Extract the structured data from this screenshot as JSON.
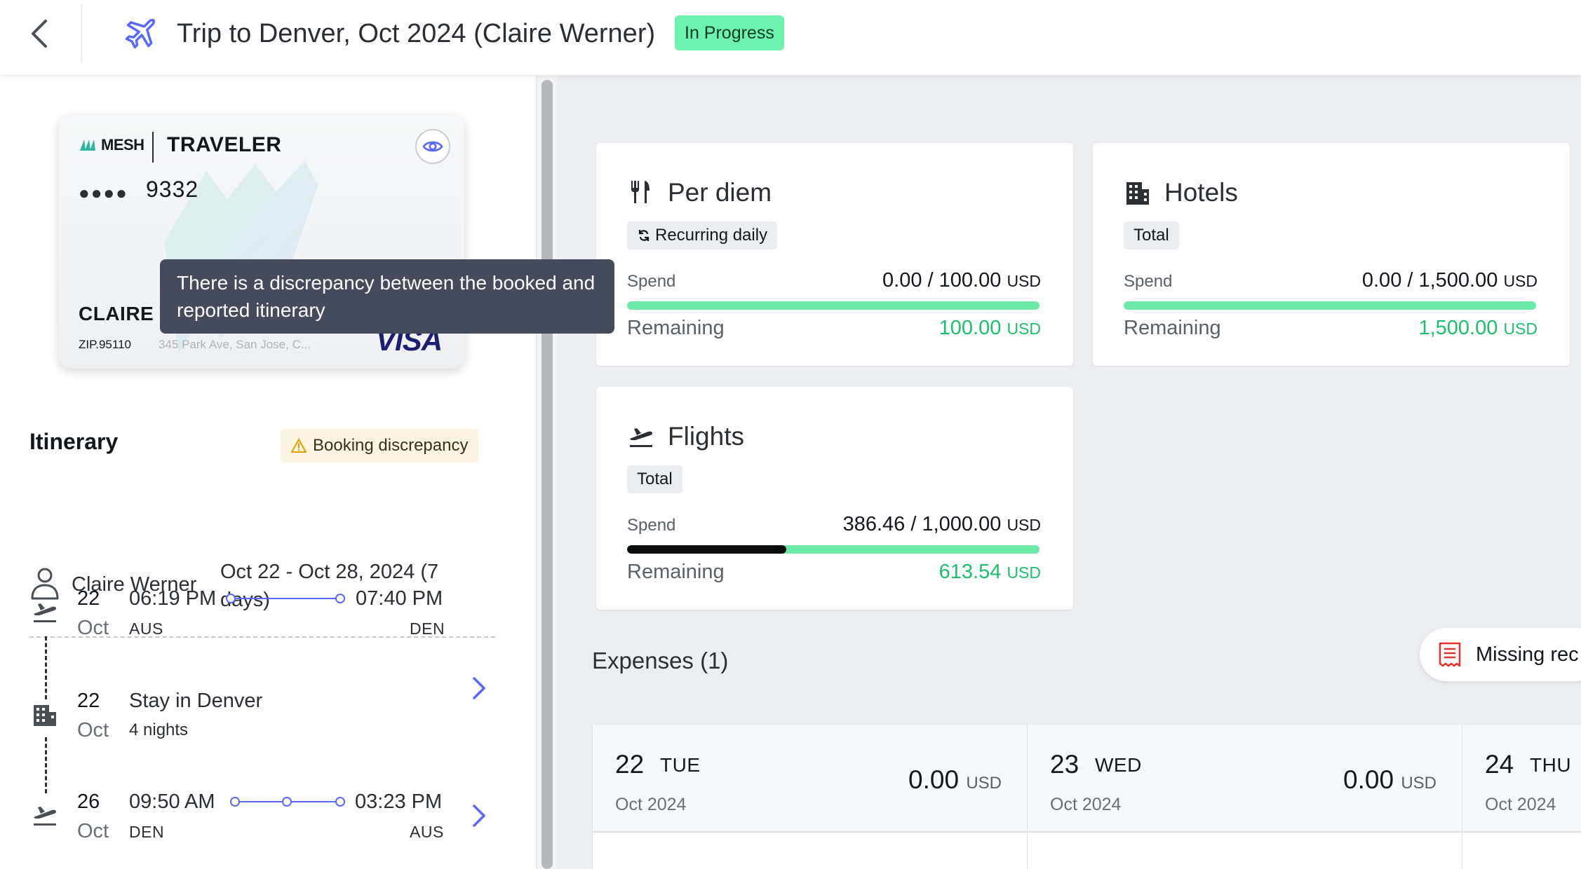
{
  "header": {
    "title": "Trip to Denver, Oct 2024 (Claire Werner)",
    "status": "In Progress"
  },
  "card": {
    "brand": "MESH",
    "product": "TRAVELER",
    "mask": "●●●●",
    "last4": "9332",
    "holder": "CLAIRE WERNER",
    "zip": "ZIP.95110",
    "address": "345 Park Ave, San Jose, C...",
    "network": "VISA"
  },
  "tooltip": {
    "text": "There is a discrepancy between the booked and reported itinerary"
  },
  "itinerary": {
    "title": "Itinerary",
    "badge": "Booking discrepancy",
    "traveler": "Claire Werner",
    "dates": "Oct 22 - Oct 28, 2024 (7 days)",
    "segments": [
      {
        "type": "flight",
        "day": "22",
        "month": "Oct",
        "depart_time": "06:19 PM",
        "arrive_time": "07:40 PM",
        "from": "AUS",
        "to": "DEN"
      },
      {
        "type": "stay",
        "day": "22",
        "month": "Oct",
        "title": "Stay in Denver",
        "subtitle": "4 nights"
      },
      {
        "type": "flight",
        "day": "26",
        "month": "Oct",
        "depart_time": "09:50 AM",
        "arrive_time": "03:23 PM",
        "from": "DEN",
        "to": "AUS"
      }
    ]
  },
  "budgets": [
    {
      "title": "Per diem",
      "icon": "fork-knife-icon",
      "pill": "Recurring daily",
      "spend_label": "Spend",
      "spend": "0.00 / 100.00",
      "currency": "USD",
      "remaining_label": "Remaining",
      "remaining": "100.00",
      "progress": 0.0
    },
    {
      "title": "Hotels",
      "icon": "building-icon",
      "pill": "Total",
      "spend_label": "Spend",
      "spend": "0.00 / 1,500.00",
      "currency": "USD",
      "remaining_label": "Remaining",
      "remaining": "1,500.00",
      "progress": 0.0
    },
    {
      "title": "Flights",
      "icon": "plane-departure-icon",
      "pill": "Total",
      "spend_label": "Spend",
      "spend": "386.46 / 1,000.00",
      "currency": "USD",
      "remaining_label": "Remaining",
      "remaining": "613.54",
      "progress": 0.3865
    }
  ],
  "expenses": {
    "title": "Expenses (1)",
    "missing_button": "Missing rec",
    "days": [
      {
        "day": "22",
        "weekday": "TUE",
        "month": "Oct 2024",
        "amount": "0.00",
        "currency": "USD"
      },
      {
        "day": "23",
        "weekday": "WED",
        "month": "Oct 2024",
        "amount": "0.00",
        "currency": "USD"
      },
      {
        "day": "24",
        "weekday": "THU",
        "month": "Oct 2024",
        "amount": "",
        "currency": ""
      }
    ]
  },
  "colors": {
    "accent": "#5869ff",
    "status_green": "#6ef2b0",
    "remaining_green": "#1dbf6d",
    "bar_green": "#6de9a6",
    "tooltip_bg": "#434b5c",
    "warning": "#e0a100"
  }
}
